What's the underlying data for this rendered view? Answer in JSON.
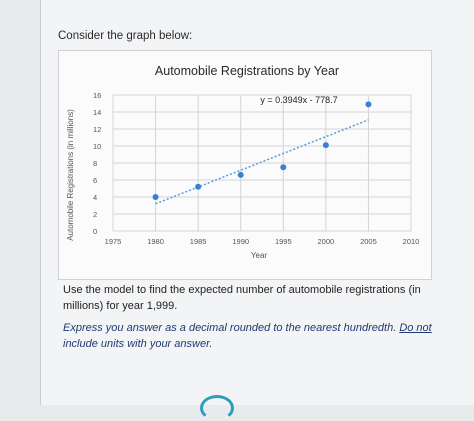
{
  "prompt": "Consider the graph below:",
  "chart_data": {
    "type": "scatter",
    "title": "Automobile Registrations by Year",
    "xlabel": "Year",
    "ylabel": "Automobile Registrations (in millions)",
    "xlim": [
      1975,
      2010
    ],
    "ylim": [
      0,
      16
    ],
    "x_ticks": [
      1975,
      1980,
      1985,
      1990,
      1995,
      2000,
      2005,
      2010
    ],
    "y_ticks": [
      0,
      2,
      4,
      6,
      8,
      10,
      12,
      14,
      16
    ],
    "grid": true,
    "points": [
      {
        "x": 1980,
        "y": 4.0
      },
      {
        "x": 1985,
        "y": 5.2
      },
      {
        "x": 1990,
        "y": 6.6
      },
      {
        "x": 1995,
        "y": 7.5
      },
      {
        "x": 2000,
        "y": 10.1
      },
      {
        "x": 2005,
        "y": 14.9
      }
    ],
    "trendline": {
      "equation": "y = 0.3949x - 778.7",
      "slope": 0.3949,
      "intercept": -778.7,
      "x_range": [
        1980,
        2005
      ]
    },
    "point_color": "#3a7fd5",
    "trend_color": "#5aa0e0"
  },
  "question": "Use the model to find the expected number of automobile registrations (in millions) for year 1,999.",
  "instruction": {
    "part1": "Express you answer as a decimal rounded to the nearest hundredth. ",
    "underlined": "Do not",
    "part2": " include units with your answer."
  }
}
